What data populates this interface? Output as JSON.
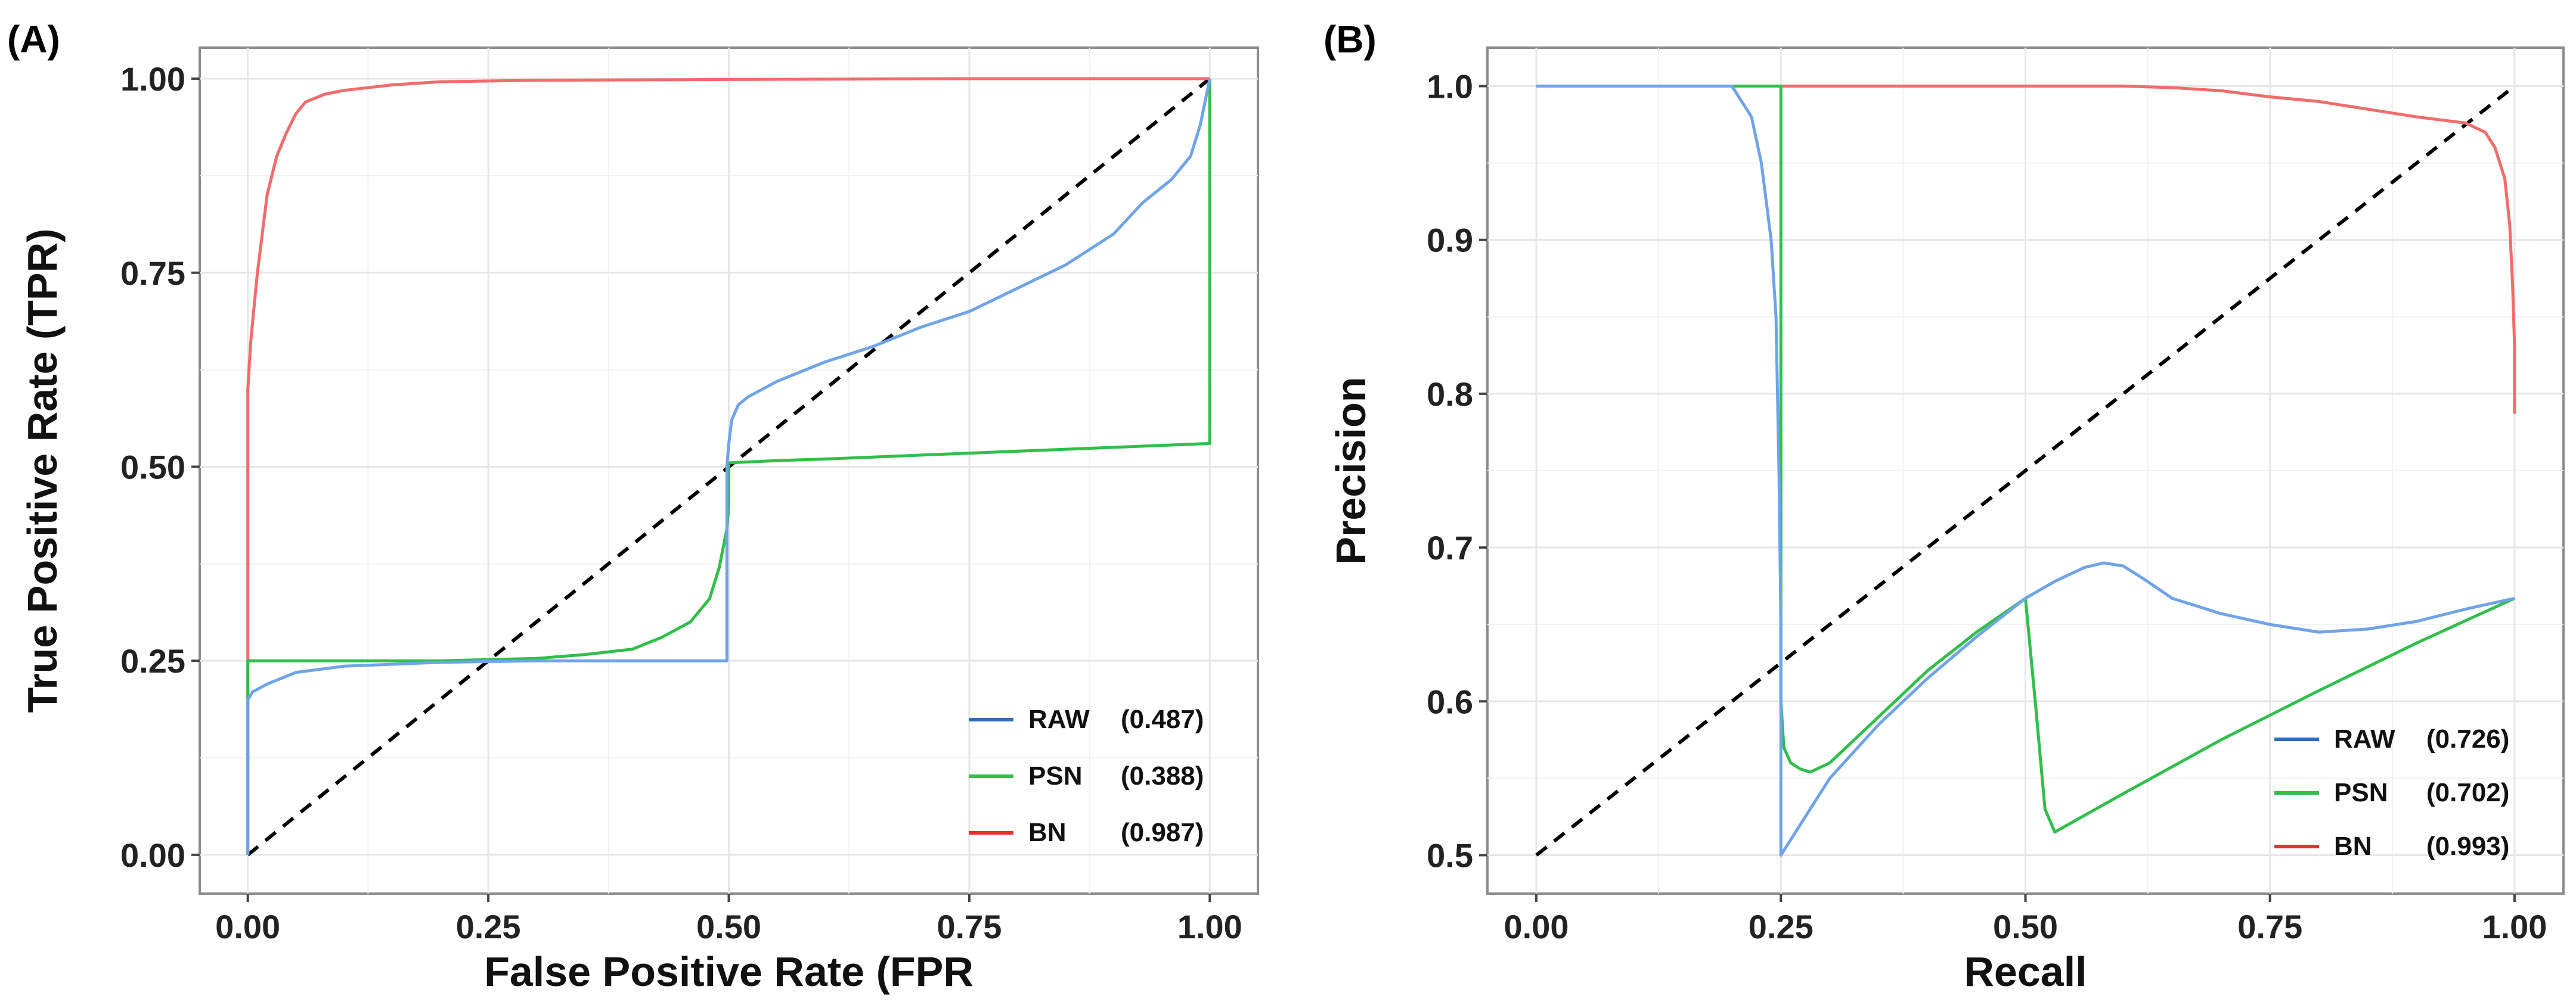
{
  "colors": {
    "RAW": "#6fa3ea",
    "RAW_legend": "#2f6fb7",
    "PSN": "#2fbf4a",
    "BN": "#f26b6b",
    "BN_legend": "#ee2d2d"
  },
  "chart_data": [
    {
      "id": "roc",
      "panel_label": "(A)",
      "type": "line",
      "xlabel": "False Positive Rate (FPR",
      "ylabel": "True Positive Rate (TPR)",
      "xlim": [
        -0.05,
        1.05
      ],
      "ylim": [
        -0.05,
        1.04
      ],
      "xticks": [
        0,
        0.25,
        0.5,
        0.75,
        1.0
      ],
      "yticks": [
        0,
        0.25,
        0.5,
        0.75,
        1.0
      ],
      "xtick_labels": [
        "0.00",
        "0.25",
        "0.50",
        "0.75",
        "1.00"
      ],
      "ytick_labels": [
        "0.00",
        "0.25",
        "0.50",
        "0.75",
        "1.00"
      ],
      "grid": true,
      "legend_position": "bottom-right",
      "reference_line": {
        "x": [
          0,
          1
        ],
        "y": [
          0,
          1
        ],
        "style": "dashed"
      },
      "series": [
        {
          "key": "RAW",
          "name": "RAW",
          "auc_label": "(0.487)",
          "x": [
            0,
            0,
            0.005,
            0.02,
            0.05,
            0.1,
            0.2,
            0.3,
            0.4,
            0.45,
            0.498,
            0.498,
            0.5,
            0.503,
            0.51,
            0.52,
            0.55,
            0.6,
            0.65,
            0.7,
            0.75,
            0.8,
            0.85,
            0.9,
            0.93,
            0.96,
            0.98,
            0.99,
            1.0
          ],
          "y": [
            0,
            0.2,
            0.21,
            0.22,
            0.235,
            0.243,
            0.248,
            0.25,
            0.25,
            0.25,
            0.25,
            0.5,
            0.53,
            0.56,
            0.58,
            0.59,
            0.61,
            0.635,
            0.655,
            0.68,
            0.7,
            0.73,
            0.76,
            0.8,
            0.84,
            0.87,
            0.9,
            0.94,
            1.0
          ]
        },
        {
          "key": "PSN",
          "name": "PSN",
          "auc_label": "(0.388)",
          "x": [
            0,
            0,
            0.1,
            0.2,
            0.3,
            0.35,
            0.4,
            0.43,
            0.46,
            0.48,
            0.49,
            0.498,
            0.5,
            0.5,
            0.55,
            0.6,
            0.7,
            0.8,
            0.9,
            1.0,
            1.0
          ],
          "y": [
            0,
            0.25,
            0.25,
            0.25,
            0.253,
            0.258,
            0.265,
            0.28,
            0.3,
            0.33,
            0.37,
            0.42,
            0.45,
            0.505,
            0.508,
            0.51,
            0.515,
            0.52,
            0.525,
            0.53,
            1.0
          ]
        },
        {
          "key": "BN",
          "name": "BN",
          "auc_label": "(0.987)",
          "x": [
            0,
            0,
            0.003,
            0.006,
            0.01,
            0.015,
            0.02,
            0.03,
            0.04,
            0.05,
            0.06,
            0.08,
            0.1,
            0.15,
            0.2,
            0.3,
            0.5,
            0.75,
            1.0
          ],
          "y": [
            0,
            0.6,
            0.66,
            0.7,
            0.75,
            0.8,
            0.85,
            0.9,
            0.93,
            0.955,
            0.97,
            0.98,
            0.985,
            0.992,
            0.996,
            0.998,
            0.999,
            1.0,
            1.0
          ]
        }
      ]
    },
    {
      "id": "pr",
      "panel_label": "(B)",
      "type": "line",
      "xlabel": "Recall",
      "ylabel": "Precision",
      "xlim": [
        -0.05,
        1.05
      ],
      "ylim": [
        0.475,
        1.025
      ],
      "xticks": [
        0,
        0.25,
        0.5,
        0.75,
        1.0
      ],
      "yticks": [
        0.5,
        0.6,
        0.7,
        0.8,
        0.9,
        1.0
      ],
      "xtick_labels": [
        "0.00",
        "0.25",
        "0.50",
        "0.75",
        "1.00"
      ],
      "ytick_labels": [
        "0.5",
        "0.6",
        "0.7",
        "0.8",
        "0.9",
        "1.0"
      ],
      "grid": true,
      "legend_position": "bottom-right",
      "reference_line": {
        "x": [
          0,
          1
        ],
        "y": [
          0.5,
          1.0
        ],
        "style": "dashed"
      },
      "series": [
        {
          "key": "RAW",
          "name": "RAW",
          "auc_label": "(0.726)",
          "x": [
            0,
            0.2,
            0.21,
            0.22,
            0.23,
            0.24,
            0.245,
            0.248,
            0.25,
            0.25,
            0.252,
            0.26,
            0.3,
            0.35,
            0.4,
            0.45,
            0.5,
            0.53,
            0.56,
            0.58,
            0.6,
            0.62,
            0.65,
            0.7,
            0.75,
            0.8,
            0.85,
            0.9,
            0.95,
            1.0
          ],
          "y": [
            1.0,
            1.0,
            0.99,
            0.98,
            0.95,
            0.9,
            0.85,
            0.75,
            0.65,
            0.5,
            0.502,
            0.51,
            0.55,
            0.585,
            0.615,
            0.642,
            0.667,
            0.678,
            0.687,
            0.69,
            0.688,
            0.68,
            0.667,
            0.657,
            0.65,
            0.645,
            0.647,
            0.652,
            0.66,
            0.667
          ]
        },
        {
          "key": "PSN",
          "name": "PSN",
          "auc_label": "(0.702)",
          "x": [
            0,
            0.25,
            0.25,
            0.253,
            0.26,
            0.27,
            0.28,
            0.3,
            0.35,
            0.4,
            0.45,
            0.5,
            0.5,
            0.51,
            0.52,
            0.53,
            0.6,
            0.7,
            0.8,
            0.9,
            1.0
          ],
          "y": [
            1.0,
            1.0,
            0.6,
            0.57,
            0.56,
            0.556,
            0.554,
            0.56,
            0.59,
            0.62,
            0.645,
            0.667,
            0.667,
            0.6,
            0.53,
            0.515,
            0.54,
            0.575,
            0.607,
            0.638,
            0.667
          ]
        },
        {
          "key": "BN",
          "name": "BN",
          "auc_label": "(0.993)",
          "x": [
            0.25,
            0.3,
            0.4,
            0.5,
            0.6,
            0.65,
            0.7,
            0.75,
            0.8,
            0.85,
            0.9,
            0.95,
            0.97,
            0.98,
            0.99,
            0.995,
            0.998,
            1.0,
            1.0
          ],
          "y": [
            1.0,
            1.0,
            1.0,
            1.0,
            1.0,
            0.999,
            0.997,
            0.993,
            0.99,
            0.985,
            0.98,
            0.976,
            0.97,
            0.96,
            0.94,
            0.91,
            0.87,
            0.83,
            0.787
          ]
        }
      ]
    }
  ]
}
